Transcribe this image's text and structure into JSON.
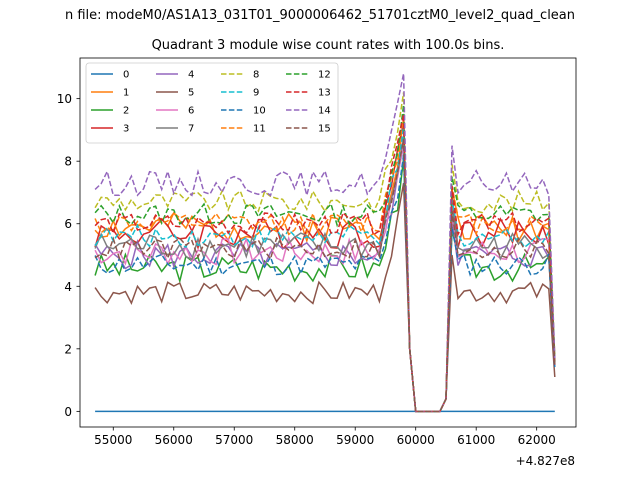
{
  "figure": {
    "suptitle": "n file: modeM0/AS1A13_031T01_9000006462_51701cztM0_level2_quad_clean",
    "title": "Quadrant 3 module wise count rates with 100.0s bins.",
    "x_offset_label": "+4.827e8"
  },
  "chart_data": {
    "type": "line",
    "title": "Quadrant 3 module wise count rates with 100.0s bins.",
    "xlabel": "",
    "ylabel": "",
    "x_offset": 482700000,
    "xlim": [
      54450,
      62650
    ],
    "ylim": [
      -0.5,
      11.3
    ],
    "x_ticks": [
      55000,
      56000,
      57000,
      58000,
      59000,
      60000,
      61000,
      62000
    ],
    "x_tick_labels": [
      "55000",
      "56000",
      "57000",
      "58000",
      "59000",
      "60000",
      "61000",
      "62000"
    ],
    "y_ticks": [
      0,
      2,
      4,
      6,
      8,
      10
    ],
    "y_tick_labels": [
      "0",
      "2",
      "4",
      "6",
      "8",
      "10"
    ],
    "grid": false,
    "legend_position": "upper-left",
    "legend_columns": 4,
    "x_range": [
      54700,
      62300
    ],
    "x_step": 100,
    "series": [
      {
        "name": "0",
        "color": "#1f77b4",
        "dash": "solid",
        "level": 0.0,
        "amp": 0.0,
        "final": 0.0,
        "seed": 1
      },
      {
        "name": "1",
        "color": "#ff7f0e",
        "dash": "solid",
        "level": 5.9,
        "amp": 0.45,
        "final": 1.6,
        "seed": 2
      },
      {
        "name": "2",
        "color": "#2ca02c",
        "dash": "solid",
        "level": 4.6,
        "amp": 0.45,
        "final": 1.5,
        "seed": 3
      },
      {
        "name": "3",
        "color": "#d62728",
        "dash": "solid",
        "level": 5.7,
        "amp": 0.5,
        "final": 1.5,
        "seed": 4
      },
      {
        "name": "4",
        "color": "#9467bd",
        "dash": "solid",
        "level": 5.0,
        "amp": 0.45,
        "final": 1.6,
        "seed": 5
      },
      {
        "name": "5",
        "color": "#8c564b",
        "dash": "solid",
        "level": 3.8,
        "amp": 0.35,
        "final": 1.1,
        "seed": 6
      },
      {
        "name": "6",
        "color": "#e377c2",
        "dash": "solid",
        "level": 5.1,
        "amp": 0.45,
        "final": 1.5,
        "seed": 7
      },
      {
        "name": "7",
        "color": "#7f7f7f",
        "dash": "solid",
        "level": 5.3,
        "amp": 0.45,
        "final": 1.5,
        "seed": 8
      },
      {
        "name": "8",
        "color": "#bcbd22",
        "dash": "dashed",
        "level": 6.7,
        "amp": 0.35,
        "final": 1.7,
        "seed": 9
      },
      {
        "name": "9",
        "color": "#17becf",
        "dash": "dashed",
        "level": 5.6,
        "amp": 0.35,
        "final": 1.6,
        "seed": 10
      },
      {
        "name": "10",
        "color": "#1f77b4",
        "dash": "dashed",
        "level": 4.7,
        "amp": 0.35,
        "final": 1.4,
        "seed": 11
      },
      {
        "name": "11",
        "color": "#ff7f0e",
        "dash": "dashed",
        "level": 6.0,
        "amp": 0.35,
        "final": 1.6,
        "seed": 12
      },
      {
        "name": "12",
        "color": "#2ca02c",
        "dash": "dashed",
        "level": 6.3,
        "amp": 0.35,
        "final": 1.6,
        "seed": 13
      },
      {
        "name": "13",
        "color": "#d62728",
        "dash": "dashed",
        "level": 6.0,
        "amp": 0.35,
        "final": 1.5,
        "seed": 14
      },
      {
        "name": "14",
        "color": "#9467bd",
        "dash": "dashed",
        "level": 7.3,
        "amp": 0.4,
        "final": 1.7,
        "seed": 15
      },
      {
        "name": "15",
        "color": "#8c564b",
        "dash": "dashed",
        "level": 5.2,
        "amp": 0.35,
        "final": 1.5,
        "seed": 16
      }
    ]
  }
}
